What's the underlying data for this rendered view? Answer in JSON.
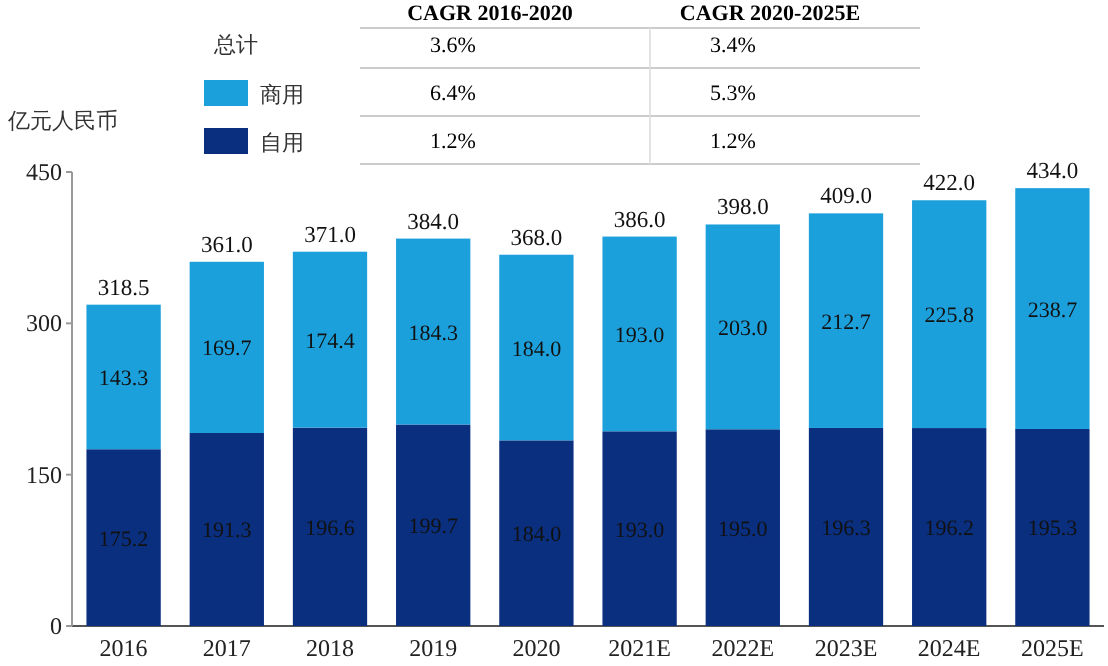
{
  "chart_data": {
    "type": "bar",
    "stacked": true,
    "ylabel": "亿元人民币",
    "categories": [
      "2016",
      "2017",
      "2018",
      "2019",
      "2020",
      "2021E",
      "2022E",
      "2023E",
      "2024E",
      "2025E"
    ],
    "series": [
      {
        "name": "自用",
        "color": "#0a2f7f",
        "values": [
          175.2,
          191.3,
          196.6,
          199.7,
          184.0,
          193.0,
          195.0,
          196.3,
          196.2,
          195.3
        ],
        "value_labels": [
          "175.2",
          "191.3",
          "196.6",
          "199.7",
          "184.0",
          "193.0",
          "195.0",
          "196.3",
          "196.2",
          "195.3"
        ]
      },
      {
        "name": "商用",
        "color": "#1ca0dc",
        "values": [
          143.3,
          169.7,
          174.4,
          184.3,
          184.0,
          193.0,
          203.0,
          212.7,
          225.8,
          238.7
        ],
        "value_labels": [
          "143.3",
          "169.7",
          "174.4",
          "184.3",
          "184.0",
          "193.0",
          "203.0",
          "212.7",
          "225.8",
          "238.7"
        ]
      }
    ],
    "totals": [
      "318.5",
      "361.0",
      "371.0",
      "384.0",
      "368.0",
      "386.0",
      "398.0",
      "409.0",
      "422.0",
      "434.0"
    ],
    "ylim": [
      0,
      450
    ],
    "yticks": [
      0,
      150,
      300,
      450
    ],
    "legend": "top left",
    "annotations": [
      "CAGR 2016-2020",
      "CAGR 2020-2025E",
      "3.6%",
      "3.4%",
      "6.4%",
      "5.3%",
      "1.2%",
      "1.2%",
      "总计"
    ]
  }
}
